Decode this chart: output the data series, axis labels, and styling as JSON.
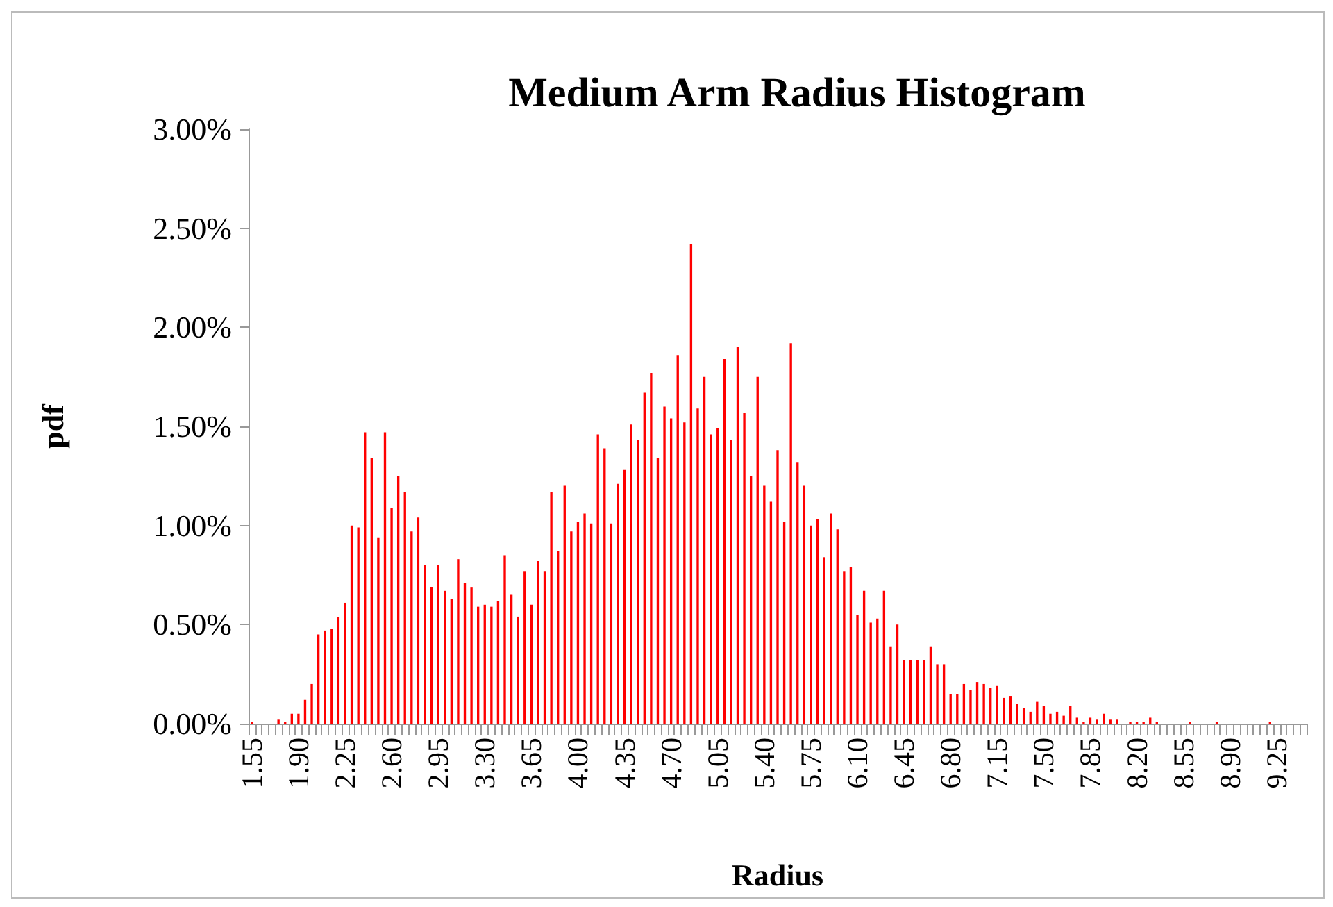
{
  "chart_data": {
    "type": "bar",
    "title": "Medium Arm Radius Histogram",
    "xlabel": "Radius",
    "ylabel": "pdf",
    "categories": [
      "1.55",
      null,
      null,
      null,
      null,
      null,
      null,
      "1.90",
      null,
      null,
      null,
      null,
      null,
      null,
      "2.25",
      null,
      null,
      null,
      null,
      null,
      null,
      "2.60",
      null,
      null,
      null,
      null,
      null,
      null,
      "2.95",
      null,
      null,
      null,
      null,
      null,
      null,
      "3.30",
      null,
      null,
      null,
      null,
      null,
      null,
      "3.65",
      null,
      null,
      null,
      null,
      null,
      null,
      "4.00",
      null,
      null,
      null,
      null,
      null,
      null,
      "4.35",
      null,
      null,
      null,
      null,
      null,
      null,
      "4.70",
      null,
      null,
      null,
      null,
      null,
      null,
      "5.05",
      null,
      null,
      null,
      null,
      null,
      null,
      "5.40",
      null,
      null,
      null,
      null,
      null,
      null,
      "5.75",
      null,
      null,
      null,
      null,
      null,
      null,
      "6.10",
      null,
      null,
      null,
      null,
      null,
      null,
      "6.45",
      null,
      null,
      null,
      null,
      null,
      null,
      "6.80",
      null,
      null,
      null,
      null,
      null,
      null,
      "7.15",
      null,
      null,
      null,
      null,
      null,
      null,
      "7.50",
      null,
      null,
      null,
      null,
      null,
      null,
      "7.85",
      null,
      null,
      null,
      null,
      null,
      null,
      "8.20",
      null,
      null,
      null,
      null,
      null,
      null,
      "8.55",
      null,
      null,
      null,
      null,
      null,
      null,
      "8.90",
      null,
      null,
      null,
      null,
      null,
      null,
      "9.25",
      null,
      null,
      null,
      null
    ],
    "values": [
      0.01,
      0,
      0,
      0,
      0.02,
      0.01,
      0.05,
      0.05,
      0.12,
      0.2,
      0.45,
      0.47,
      0.48,
      0.54,
      0.61,
      1.0,
      0.99,
      1.47,
      1.34,
      0.94,
      1.47,
      1.09,
      1.25,
      1.17,
      0.97,
      1.04,
      0.8,
      0.69,
      0.8,
      0.67,
      0.63,
      0.83,
      0.71,
      0.69,
      0.59,
      0.6,
      0.59,
      0.62,
      0.85,
      0.65,
      0.54,
      0.77,
      0.6,
      0.82,
      0.77,
      1.17,
      0.87,
      1.2,
      0.97,
      1.02,
      1.06,
      1.01,
      1.46,
      1.39,
      1.01,
      1.21,
      1.28,
      1.51,
      1.43,
      1.67,
      1.77,
      1.34,
      1.6,
      1.54,
      1.86,
      1.52,
      2.42,
      1.59,
      1.75,
      1.46,
      1.49,
      1.84,
      1.43,
      1.9,
      1.57,
      1.25,
      1.75,
      1.2,
      1.12,
      1.38,
      1.02,
      1.92,
      1.32,
      1.2,
      1.0,
      1.03,
      0.84,
      1.06,
      0.98,
      0.77,
      0.79,
      0.55,
      0.67,
      0.51,
      0.53,
      0.67,
      0.39,
      0.5,
      0.32,
      0.32,
      0.32,
      0.32,
      0.39,
      0.3,
      0.3,
      0.15,
      0.15,
      0.2,
      0.17,
      0.21,
      0.2,
      0.18,
      0.19,
      0.13,
      0.14,
      0.1,
      0.08,
      0.06,
      0.11,
      0.09,
      0.05,
      0.06,
      0.04,
      0.09,
      0.03,
      0.01,
      0.03,
      0.02,
      0.05,
      0.02,
      0.02,
      0,
      0.01,
      0.01,
      0.01,
      0.03,
      0.01,
      0,
      0,
      0,
      0,
      0.01,
      0,
      0,
      0,
      0.01,
      0,
      0,
      0,
      0,
      0,
      0,
      0,
      0.01,
      0,
      0,
      0,
      0,
      0
    ],
    "color": "#ff0000",
    "ylim": [
      0,
      3
    ],
    "yticks": [
      {
        "value": 0,
        "label": "0.00%"
      },
      {
        "value": 0.5,
        "label": "0.50%"
      },
      {
        "value": 1,
        "label": "1.00%"
      },
      {
        "value": 1.5,
        "label": "1.50%"
      },
      {
        "value": 2,
        "label": "2.00%"
      },
      {
        "value": 2.5,
        "label": "2.50%"
      },
      {
        "value": 3,
        "label": "3.00%"
      }
    ]
  }
}
